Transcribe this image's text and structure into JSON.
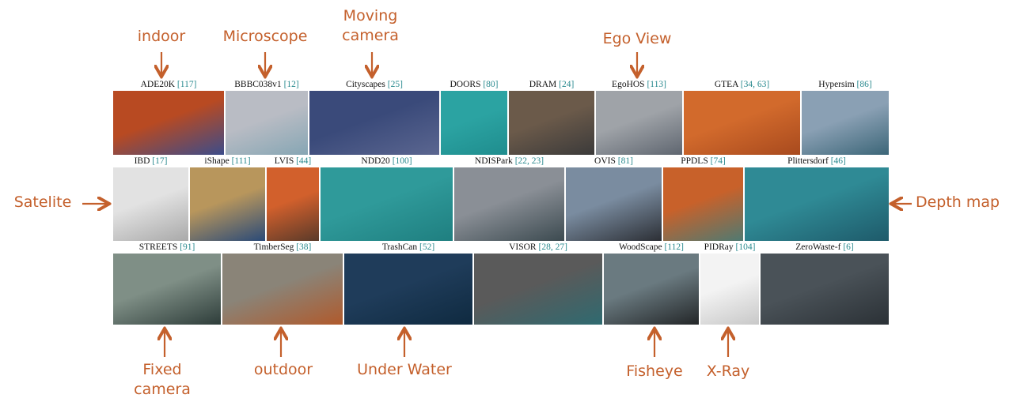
{
  "colors": {
    "accent": "#c4602c",
    "citation": "#2a8a8f"
  },
  "datasets": [
    {
      "name": "ADE20K",
      "ref": "[117]",
      "colors": [
        "#b84a22",
        "#3c4c8a"
      ]
    },
    {
      "name": "BBBC038v1",
      "ref": "[12]",
      "colors": [
        "#b9bcc4",
        "#86a6b4"
      ]
    },
    {
      "name": "Cityscapes",
      "ref": "[25]",
      "colors": [
        "#3a4a7a",
        "#5b6690"
      ]
    },
    {
      "name": "DOORS",
      "ref": "[80]",
      "colors": [
        "#2ba3a2",
        "#1f8d8e"
      ]
    },
    {
      "name": "DRAM",
      "ref": "[24]",
      "colors": [
        "#6b5a4a",
        "#3b3a3a"
      ]
    },
    {
      "name": "EgoHOS",
      "ref": "[113]",
      "colors": [
        "#9fa3a8",
        "#5f6670"
      ]
    },
    {
      "name": "GTEA",
      "ref": "[34, 63]",
      "colors": [
        "#d26a2c",
        "#a84a1e"
      ]
    },
    {
      "name": "Hypersim",
      "ref": "[86]",
      "colors": [
        "#8aa0b4",
        "#3c6678"
      ]
    },
    {
      "name": "IBD",
      "ref": "[17]",
      "colors": [
        "#e2e2e2",
        "#a9a9a9"
      ]
    },
    {
      "name": "iShape",
      "ref": "[111]",
      "colors": [
        "#b8965c",
        "#2a4a78"
      ]
    },
    {
      "name": "LVIS",
      "ref": "[44]",
      "colors": [
        "#d2602c",
        "#5a3a2a"
      ]
    },
    {
      "name": "NDD20",
      "ref": "[100]",
      "colors": [
        "#2f9a9a",
        "#1f7f80"
      ]
    },
    {
      "name": "NDISPark",
      "ref": "[22, 23]",
      "colors": [
        "#8a8f96",
        "#3c4a50"
      ]
    },
    {
      "name": "OVIS",
      "ref": "[81]",
      "colors": [
        "#7a8ca0",
        "#2c2f35"
      ]
    },
    {
      "name": "PPDLS",
      "ref": "[74]",
      "colors": [
        "#c8612a",
        "#4f7a72"
      ]
    },
    {
      "name": "Plittersdorf",
      "ref": "[46]",
      "colors": [
        "#2f8a95",
        "#1e5a6a"
      ]
    },
    {
      "name": "STREETS",
      "ref": "[91]",
      "colors": [
        "#7f8f86",
        "#2e3d3a"
      ]
    },
    {
      "name": "TimberSeg",
      "ref": "[38]",
      "colors": [
        "#8a8478",
        "#b05a2c"
      ]
    },
    {
      "name": "TrashCan",
      "ref": "[52]",
      "colors": [
        "#1f3c5a",
        "#0f2a40"
      ]
    },
    {
      "name": "VISOR",
      "ref": "[28, 27]",
      "colors": [
        "#5a5a5a",
        "#2f6a70"
      ]
    },
    {
      "name": "WoodScape",
      "ref": "[112]",
      "colors": [
        "#6a7a80",
        "#232628"
      ]
    },
    {
      "name": "PIDRay",
      "ref": "[104]",
      "colors": [
        "#f3f3f3",
        "#c8c8c8"
      ]
    },
    {
      "name": "ZeroWaste-f",
      "ref": "[6]",
      "colors": [
        "#4a5258",
        "#2b3136"
      ]
    }
  ],
  "annotations": [
    {
      "id": "indoor",
      "lines": [
        "indoor"
      ]
    },
    {
      "id": "microscope",
      "lines": [
        "Microscope"
      ]
    },
    {
      "id": "moving-camera",
      "lines": [
        "Moving",
        "camera"
      ]
    },
    {
      "id": "ego-view",
      "lines": [
        "Ego View"
      ]
    },
    {
      "id": "satelite",
      "lines": [
        "Satelite"
      ]
    },
    {
      "id": "depth-map",
      "lines": [
        "Depth map"
      ]
    },
    {
      "id": "fixed-camera",
      "lines": [
        "Fixed",
        "camera"
      ]
    },
    {
      "id": "outdoor",
      "lines": [
        "outdoor"
      ]
    },
    {
      "id": "under-water",
      "lines": [
        "Under Water"
      ]
    },
    {
      "id": "fisheye",
      "lines": [
        "Fisheye"
      ]
    },
    {
      "id": "x-ray",
      "lines": [
        "X-Ray"
      ]
    }
  ]
}
